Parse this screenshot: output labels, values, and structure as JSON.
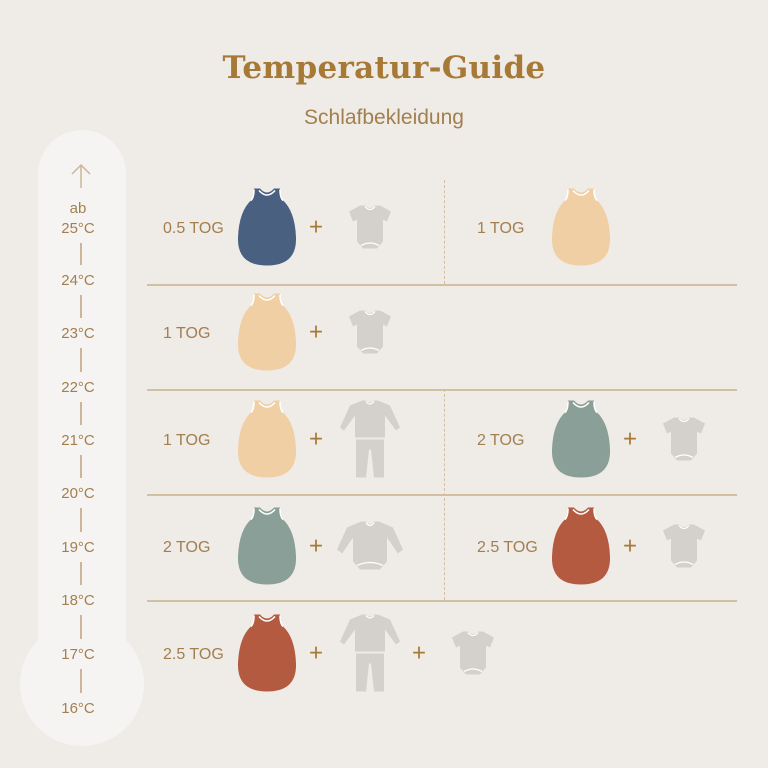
{
  "header": {
    "title": "Temperatur-Guide",
    "subtitle": "Schlafbekleidung"
  },
  "thermometer": {
    "prefix": "ab",
    "temps": [
      "25°C",
      "24°C",
      "23°C",
      "22°C",
      "21°C",
      "20°C",
      "19°C",
      "18°C",
      "17°C",
      "16°C"
    ]
  },
  "colors": {
    "navy": "#4a6080",
    "sand": "#efcfa3",
    "sage": "#8a9f98",
    "rust": "#b35a41",
    "garment": "#d4d1cc",
    "accent": "#a77936"
  },
  "rows": [
    {
      "cells": [
        {
          "tog": "0.5 TOG",
          "items": [
            {
              "icon": "sleeping-bag",
              "color": "navy"
            },
            {
              "icon": "short-sleeve-bodysuit"
            }
          ]
        },
        {
          "tog": "1 TOG",
          "items": [
            {
              "icon": "sleeping-bag",
              "color": "sand"
            }
          ]
        }
      ]
    },
    {
      "cells": [
        {
          "tog": "1 TOG",
          "items": [
            {
              "icon": "sleeping-bag",
              "color": "sand"
            },
            {
              "icon": "short-sleeve-bodysuit"
            }
          ]
        }
      ]
    },
    {
      "cells": [
        {
          "tog": "1 TOG",
          "items": [
            {
              "icon": "sleeping-bag",
              "color": "sand"
            },
            {
              "icon": "pajamas"
            }
          ]
        },
        {
          "tog": "2 TOG",
          "items": [
            {
              "icon": "sleeping-bag",
              "color": "sage"
            },
            {
              "icon": "short-sleeve-bodysuit"
            }
          ]
        }
      ]
    },
    {
      "cells": [
        {
          "tog": "2 TOG",
          "items": [
            {
              "icon": "sleeping-bag",
              "color": "sage"
            },
            {
              "icon": "long-sleeve-bodysuit"
            }
          ]
        },
        {
          "tog": "2.5 TOG",
          "items": [
            {
              "icon": "sleeping-bag",
              "color": "rust"
            },
            {
              "icon": "short-sleeve-bodysuit"
            }
          ]
        }
      ]
    },
    {
      "cells": [
        {
          "tog": "2.5 TOG",
          "items": [
            {
              "icon": "sleeping-bag",
              "color": "rust"
            },
            {
              "icon": "pajamas"
            },
            {
              "icon": "short-sleeve-bodysuit"
            }
          ]
        }
      ]
    }
  ]
}
